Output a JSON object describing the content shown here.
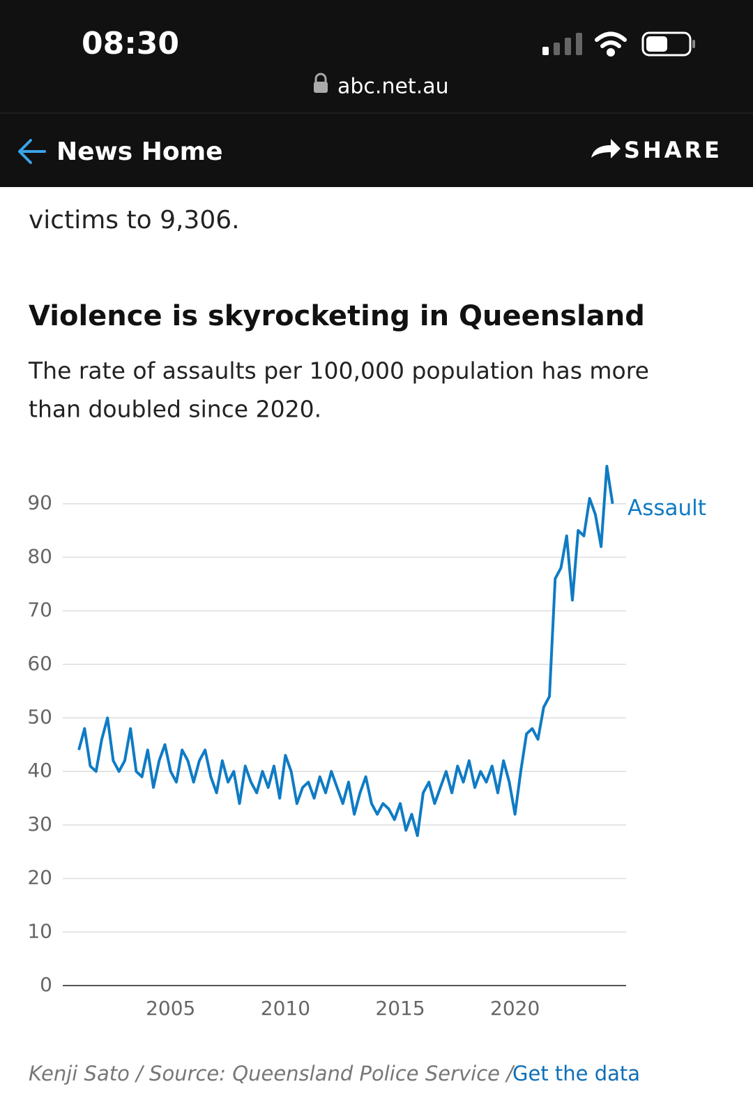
{
  "status_bar": {
    "time": "08:30",
    "url": "abc.net.au"
  },
  "nav": {
    "back": "News Home",
    "share": "SHARE"
  },
  "article": {
    "text": "victims to 9,306."
  },
  "chart_data": {
    "type": "line",
    "title": "Violence is skyrocketing in Queensland",
    "subtitle": [
      "The rate of assaults per 100,000 population has more",
      "than doubled since 2020."
    ],
    "x": [
      2001,
      2001.25,
      2001.5,
      2001.75,
      2002,
      2002.25,
      2002.5,
      2002.75,
      2003,
      2003.25,
      2003.5,
      2003.75,
      2004,
      2004.25,
      2004.5,
      2004.75,
      2005,
      2005.25,
      2005.5,
      2005.75,
      2006,
      2006.25,
      2006.5,
      2006.75,
      2007,
      2007.25,
      2007.5,
      2007.75,
      2008,
      2008.25,
      2008.5,
      2008.75,
      2009,
      2009.25,
      2009.5,
      2009.75,
      2010,
      2010.25,
      2010.5,
      2010.75,
      2011,
      2011.25,
      2011.5,
      2011.75,
      2012,
      2012.25,
      2012.5,
      2012.75,
      2013,
      2013.25,
      2013.5,
      2013.75,
      2014,
      2014.25,
      2014.5,
      2014.75,
      2015,
      2015.25,
      2015.5,
      2015.75,
      2016,
      2016.25,
      2016.5,
      2016.75,
      2017,
      2017.25,
      2017.5,
      2017.75,
      2018,
      2018.25,
      2018.5,
      2018.75,
      2019,
      2019.25,
      2019.5,
      2019.75,
      2020,
      2020.25,
      2020.5,
      2020.75,
      2021,
      2021.25,
      2021.5,
      2021.75,
      2022,
      2022.25,
      2022.5,
      2022.75,
      2023,
      2023.25,
      2023.5,
      2023.75,
      2024,
      2024.25
    ],
    "series": [
      {
        "name": "Assault",
        "color": "#0f7bc4",
        "values": [
          44,
          48,
          41,
          40,
          46,
          50,
          42,
          40,
          42,
          48,
          40,
          39,
          44,
          37,
          42,
          45,
          40,
          38,
          44,
          42,
          38,
          42,
          44,
          39,
          36,
          42,
          38,
          40,
          34,
          41,
          38,
          36,
          40,
          37,
          41,
          35,
          43,
          40,
          34,
          37,
          38,
          35,
          39,
          36,
          40,
          37,
          34,
          38,
          32,
          36,
          39,
          34,
          32,
          34,
          33,
          31,
          34,
          29,
          32,
          28,
          36,
          38,
          34,
          37,
          40,
          36,
          41,
          38,
          42,
          37,
          40,
          38,
          41,
          36,
          42,
          38,
          32,
          40,
          47,
          48,
          46,
          52,
          54,
          76,
          78,
          84,
          72,
          85,
          84,
          91,
          88,
          82,
          97,
          90
        ]
      }
    ],
    "xlim": [
      2000.3,
      2024.9
    ],
    "xticks": [
      2005,
      2010,
      2015,
      2020
    ],
    "ylim": [
      0,
      100
    ],
    "yticks": [
      0,
      10,
      20,
      30,
      40,
      50,
      60,
      70,
      80,
      90
    ],
    "grid": true,
    "source": "Kenji Sato / Source: Queensland Police Service /",
    "link": "Get the data"
  }
}
